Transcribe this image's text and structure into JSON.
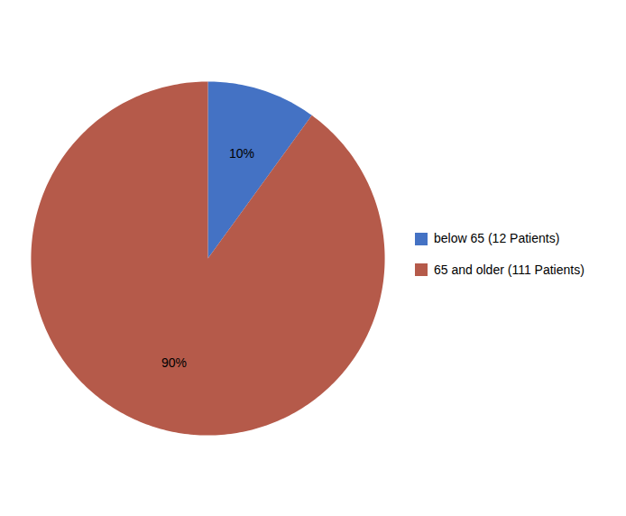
{
  "chart_data": {
    "type": "pie",
    "categories": [
      "below 65 (12 Patients)",
      "65 and older (111 Patients)"
    ],
    "values": [
      10,
      90
    ],
    "value_labels": [
      "10%",
      "90%"
    ],
    "colors": [
      "#4472C4",
      "#B55A4A"
    ],
    "data_labels": true,
    "legend": "right"
  }
}
